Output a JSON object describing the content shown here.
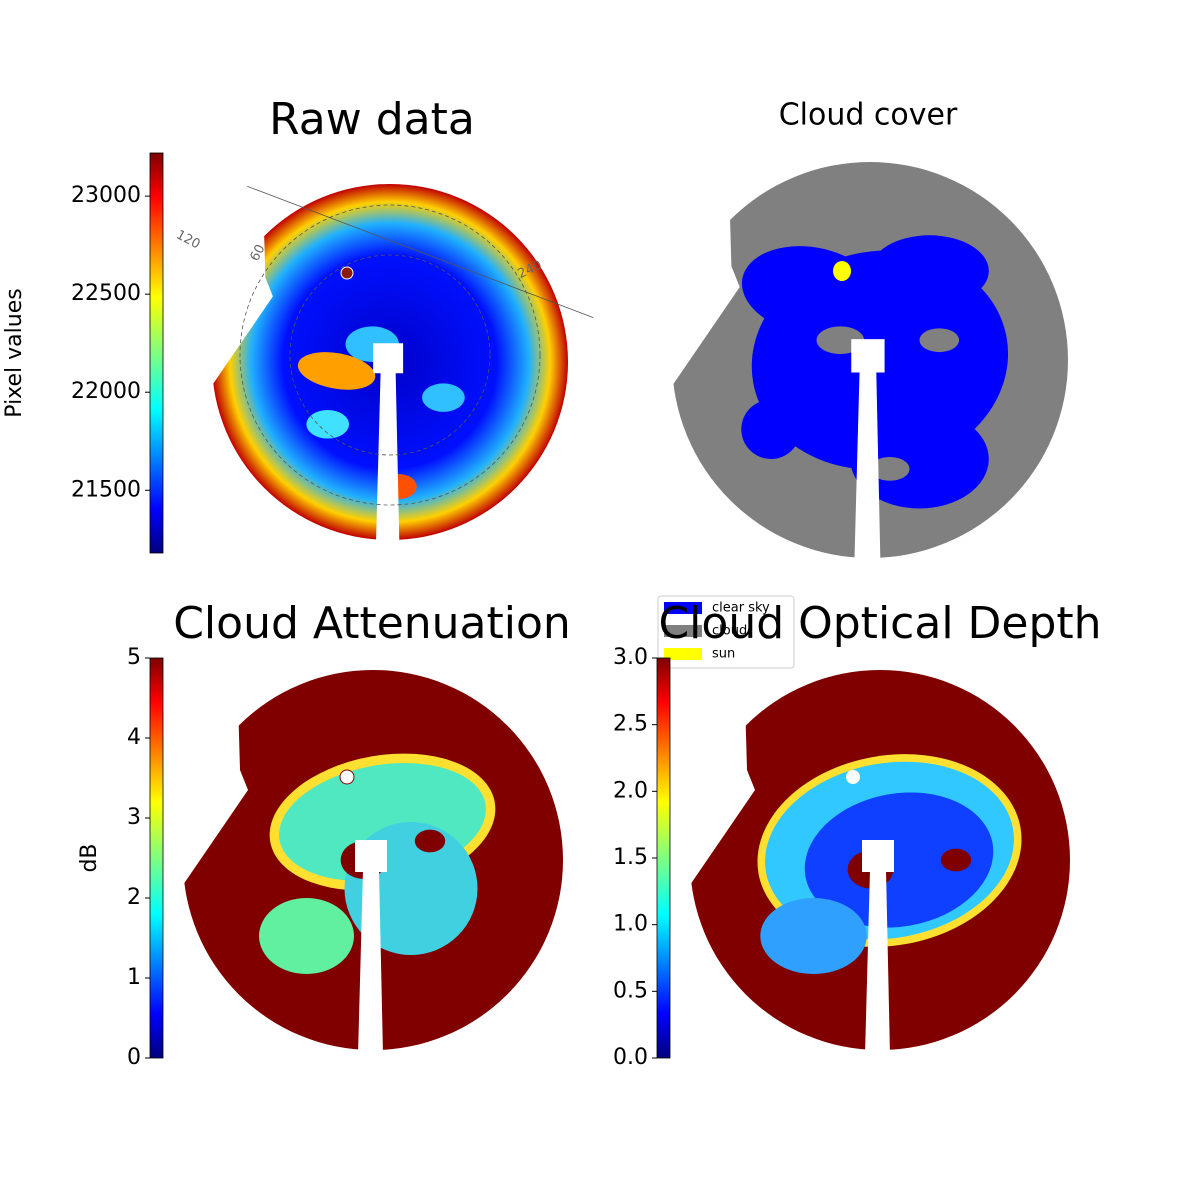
{
  "chart_data": [
    {
      "type": "image",
      "title": "Raw data",
      "colorbar_label": "Pixel values",
      "colormap": "jet",
      "zlim": [
        21180,
        23220
      ],
      "zticks": [
        21500,
        22000,
        22500,
        23000
      ],
      "annotations": [
        "120",
        "60",
        "240"
      ]
    },
    {
      "type": "image",
      "title": "Cloud cover",
      "series": [
        {
          "name": "clear sky",
          "color": "#0000ff"
        },
        {
          "name": "cloud",
          "color": "#808080"
        },
        {
          "name": "sun",
          "color": "#ffff00"
        }
      ]
    },
    {
      "type": "image",
      "title": "Cloud Attenuation",
      "colorbar_label": "dB",
      "colormap": "jet",
      "zlim": [
        0,
        5
      ],
      "zticks": [
        0,
        1,
        2,
        3,
        4,
        5
      ]
    },
    {
      "type": "image",
      "title": "Cloud Optical Depth",
      "colormap": "jet",
      "zlim": [
        0,
        3
      ],
      "zticks": [
        {
          "value": 0,
          "label": "0.0"
        },
        0.5,
        {
          "value": 1,
          "label": "1.0"
        },
        1.5,
        {
          "value": 2,
          "label": "2.0"
        },
        2.5,
        {
          "value": 3,
          "label": "3.0"
        }
      ]
    }
  ]
}
